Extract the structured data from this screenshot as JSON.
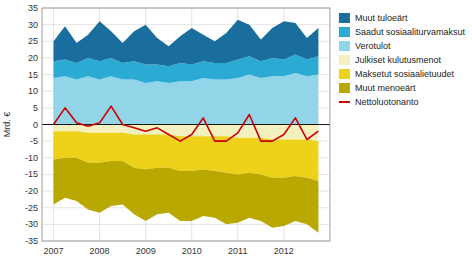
{
  "chart_data": {
    "type": "area",
    "stacked": true,
    "y_label": "Mrd. €",
    "x": [
      2007.0,
      2007.25,
      2007.5,
      2007.75,
      2008.0,
      2008.25,
      2008.5,
      2008.75,
      2009.0,
      2009.25,
      2009.5,
      2009.75,
      2010.0,
      2010.25,
      2010.5,
      2010.75,
      2011.0,
      2011.25,
      2011.5,
      2011.75,
      2012.0,
      2012.25,
      2012.5,
      2012.75
    ],
    "xlim": [
      2006.75,
      2013.0
    ],
    "xticks": [
      2007,
      2008,
      2009,
      2010,
      2011,
      2012
    ],
    "ylim": [
      -35,
      35
    ],
    "yticks": [
      -35,
      -30,
      -25,
      -20,
      -15,
      -10,
      -5,
      0,
      5,
      10,
      15,
      20,
      25,
      30,
      35
    ],
    "grid": true,
    "legend": "right",
    "series": [
      {
        "name": "Verotulot",
        "type": "area",
        "color": "#93D5E8",
        "values": [
          14.0,
          14.5,
          13.5,
          14.5,
          13.5,
          14.5,
          13.5,
          13.5,
          12.5,
          13.0,
          12.5,
          13.0,
          13.0,
          14.0,
          13.5,
          13.5,
          14.0,
          15.0,
          14.0,
          14.5,
          14.5,
          15.5,
          14.5,
          15.0
        ]
      },
      {
        "name": "Saadut sosiaaliturvamaksut",
        "type": "area",
        "color": "#2BAAD4",
        "values": [
          5.0,
          5.0,
          5.0,
          5.5,
          5.5,
          5.5,
          5.0,
          5.5,
          5.5,
          5.0,
          5.0,
          5.5,
          5.0,
          5.0,
          5.0,
          5.0,
          5.5,
          5.5,
          5.0,
          5.5,
          5.0,
          5.5,
          5.0,
          5.5
        ]
      },
      {
        "name": "Muut tuloeärt",
        "type": "area",
        "color": "#1A6E9E",
        "values": [
          6.0,
          10.0,
          6.0,
          7.0,
          12.0,
          8.0,
          6.0,
          9.0,
          12.0,
          8.0,
          6.0,
          8.0,
          11.0,
          8.0,
          6.5,
          9.0,
          12.0,
          9.5,
          6.5,
          9.0,
          11.5,
          9.5,
          6.5,
          8.5
        ]
      },
      {
        "name": "Julkiset kulutusmenot",
        "type": "area",
        "color": "#F5F0C0",
        "values": [
          -2.0,
          -2.0,
          -2.0,
          -2.5,
          -2.5,
          -2.5,
          -2.5,
          -3.0,
          -3.0,
          -3.0,
          -3.0,
          -3.5,
          -3.5,
          -3.5,
          -3.5,
          -3.5,
          -4.0,
          -4.0,
          -4.0,
          -4.5,
          -4.5,
          -4.5,
          -4.5,
          -5.0
        ]
      },
      {
        "name": "Maksetut sosiaalietuudet",
        "type": "area",
        "color": "#EDD11A",
        "values": [
          -8.5,
          -8.0,
          -8.0,
          -9.0,
          -9.0,
          -8.5,
          -8.5,
          -10.0,
          -10.5,
          -10.0,
          -10.0,
          -10.5,
          -10.5,
          -10.0,
          -10.5,
          -11.0,
          -11.0,
          -10.5,
          -11.0,
          -11.5,
          -11.5,
          -11.0,
          -11.5,
          -12.0
        ]
      },
      {
        "name": "Muut menoeärt",
        "type": "area",
        "color": "#B8A800",
        "values": [
          -13.5,
          -12.0,
          -13.0,
          -14.0,
          -15.0,
          -13.5,
          -13.0,
          -14.0,
          -15.5,
          -14.0,
          -13.5,
          -15.0,
          -15.0,
          -14.0,
          -14.0,
          -15.5,
          -14.5,
          -13.5,
          -14.0,
          -15.0,
          -14.5,
          -13.5,
          -14.0,
          -15.5
        ]
      },
      {
        "name": "Nettoluotonanto",
        "type": "line",
        "color": "#CC0000",
        "values": [
          0.0,
          5.0,
          0.5,
          -0.5,
          0.5,
          5.5,
          0.0,
          -1.0,
          -2.0,
          -1.0,
          -3.0,
          -5.0,
          -3.0,
          2.0,
          -5.0,
          -5.0,
          -2.5,
          3.0,
          -5.0,
          -5.0,
          -3.0,
          2.0,
          -4.5,
          -2.0
        ]
      }
    ]
  }
}
